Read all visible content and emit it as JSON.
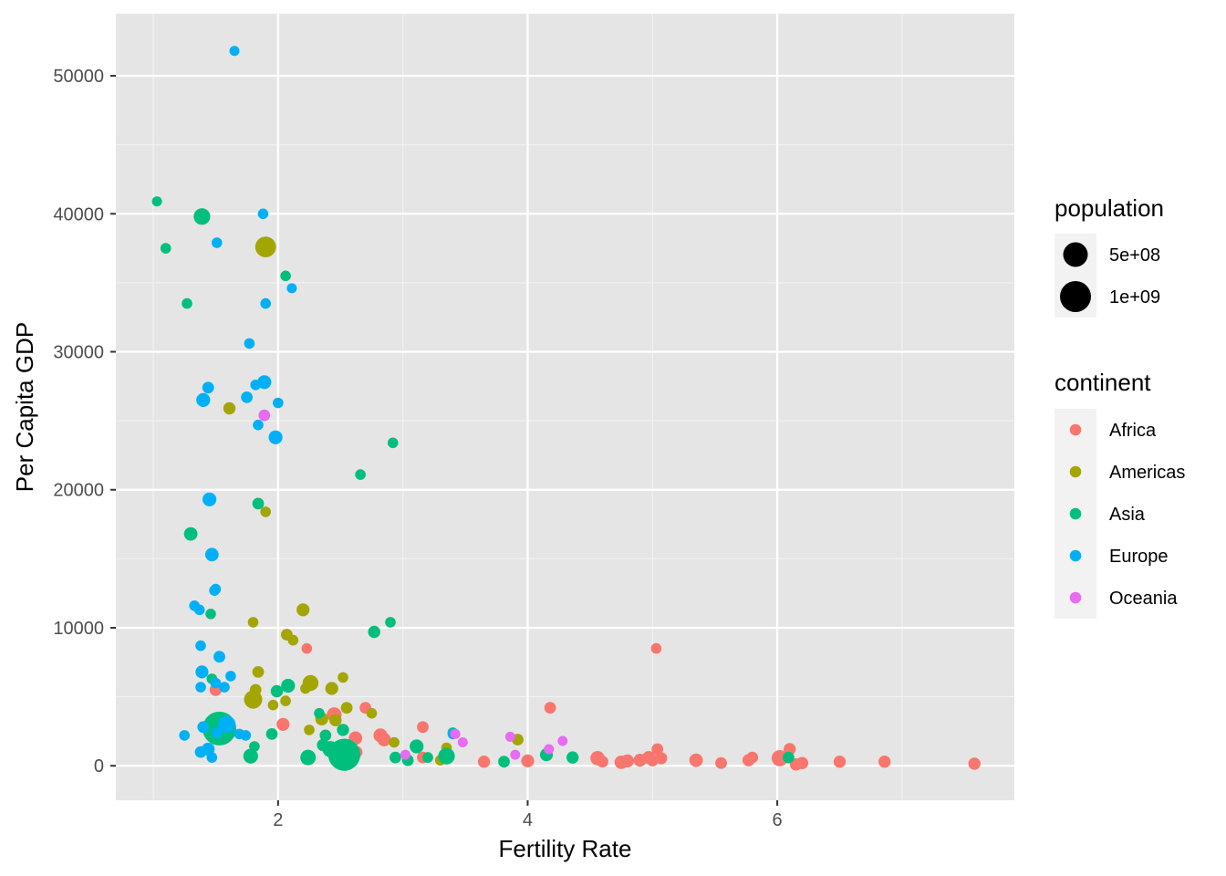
{
  "chart_data": {
    "type": "scatter",
    "xlabel": "Fertility Rate",
    "ylabel": "Per Capita GDP",
    "xlim": [
      0.7,
      7.9
    ],
    "ylim": [
      -2500,
      54500
    ],
    "x_ticks": [
      2,
      4,
      6
    ],
    "x_minor_ticks": [
      1,
      3,
      5,
      7
    ],
    "y_ticks": [
      0,
      10000,
      20000,
      30000,
      40000,
      50000
    ],
    "y_minor_ticks": [
      5000,
      15000,
      25000,
      35000,
      45000
    ],
    "x_tick_labels": [
      "2",
      "4",
      "6"
    ],
    "y_tick_labels": [
      "0",
      "10000",
      "20000",
      "30000",
      "40000",
      "50000"
    ],
    "grid": true,
    "legend_position": "right",
    "size_legend": {
      "title": "population",
      "entries": [
        {
          "label": "5e+08",
          "value": 500000000
        },
        {
          "label": "1e+09",
          "value": 1000000000
        }
      ]
    },
    "color_legend": {
      "title": "continent",
      "entries": [
        {
          "label": "Africa",
          "color": "#F8766D"
        },
        {
          "label": "Americas",
          "color": "#A3A500"
        },
        {
          "label": "Asia",
          "color": "#00BF7D"
        },
        {
          "label": "Europe",
          "color": "#00B0F6"
        },
        {
          "label": "Oceania",
          "color": "#E76BF3"
        }
      ]
    },
    "colors": {
      "panel_background": "#E5E5E5",
      "grid_major": "#FFFFFF",
      "grid_minor": "#F2F2F2",
      "legend_key_background": "#F2F2F2"
    },
    "series": [
      {
        "name": "Africa",
        "color": "#F8766D",
        "points": [
          [
            1.5,
            5500,
            30000000.0
          ],
          [
            2.23,
            8500,
            10000000.0
          ],
          [
            2.04,
            3000,
            40000000.0
          ],
          [
            2.45,
            3700,
            80000000.0
          ],
          [
            2.7,
            4200,
            20000000.0
          ],
          [
            2.62,
            2000,
            50000000.0
          ],
          [
            2.82,
            2200,
            60000000.0
          ],
          [
            2.85,
            1900,
            50000000.0
          ],
          [
            2.63,
            1000,
            20000000.0
          ],
          [
            3.16,
            2800,
            20000000.0
          ],
          [
            3.16,
            600,
            20000000.0
          ],
          [
            3.65,
            300,
            30000000.0
          ],
          [
            4.0,
            350,
            40000000.0
          ],
          [
            4.18,
            4200,
            20000000.0
          ],
          [
            4.56,
            550,
            70000000.0
          ],
          [
            4.6,
            300,
            20000000.0
          ],
          [
            4.75,
            250,
            50000000.0
          ],
          [
            4.8,
            350,
            40000000.0
          ],
          [
            4.9,
            400,
            40000000.0
          ],
          [
            4.97,
            600,
            40000000.0
          ],
          [
            5.0,
            400,
            30000000.0
          ],
          [
            5.03,
            8500,
            10000000.0
          ],
          [
            5.04,
            1200,
            20000000.0
          ],
          [
            5.07,
            550,
            30000000.0
          ],
          [
            5.35,
            400,
            50000000.0
          ],
          [
            5.55,
            200,
            20000000.0
          ],
          [
            5.77,
            400,
            30000000.0
          ],
          [
            5.8,
            600,
            20000000.0
          ],
          [
            6.02,
            550,
            120000000.0
          ],
          [
            6.1,
            1200,
            30000000.0
          ],
          [
            6.15,
            100,
            30000000.0
          ],
          [
            6.2,
            200,
            30000000.0
          ],
          [
            6.5,
            300,
            30000000.0
          ],
          [
            6.86,
            300,
            30000000.0
          ],
          [
            7.58,
            150,
            30000000.0
          ]
        ]
      },
      {
        "name": "Americas",
        "color": "#A3A500",
        "points": [
          [
            1.61,
            25900,
            30000000.0
          ],
          [
            1.9,
            37600,
            300000000.0
          ],
          [
            1.8,
            10400,
            10000000.0
          ],
          [
            1.82,
            5500,
            20000000.0
          ],
          [
            1.84,
            6800,
            20000000.0
          ],
          [
            1.8,
            4800,
            190000000.0
          ],
          [
            1.9,
            18400,
            10000000.0
          ],
          [
            1.96,
            4400,
            10000000.0
          ],
          [
            2.06,
            4700,
            10000000.0
          ],
          [
            2.07,
            9500,
            20000000.0
          ],
          [
            2.12,
            9100,
            10000000.0
          ],
          [
            2.2,
            11300,
            40000000.0
          ],
          [
            2.22,
            5600,
            10000000.0
          ],
          [
            2.26,
            6000,
            110000000.0
          ],
          [
            2.25,
            2600,
            10000000.0
          ],
          [
            2.35,
            3400,
            40000000.0
          ],
          [
            2.43,
            5600,
            40000000.0
          ],
          [
            2.46,
            3300,
            30000000.0
          ],
          [
            2.52,
            6400,
            10000000.0
          ],
          [
            2.55,
            4200,
            20000000.0
          ],
          [
            2.6,
            900,
            10000000.0
          ],
          [
            2.75,
            3800,
            10000000.0
          ],
          [
            2.93,
            1700,
            10000000.0
          ],
          [
            3.2,
            600,
            10000000.0
          ],
          [
            3.3,
            400,
            10000000.0
          ],
          [
            3.35,
            1300,
            10000000.0
          ],
          [
            3.92,
            1900,
            20000000.0
          ]
        ]
      },
      {
        "name": "Asia",
        "color": "#00BF7D",
        "points": [
          [
            1.03,
            40900,
            5000000.0
          ],
          [
            1.1,
            37500,
            10000000.0
          ],
          [
            1.27,
            33500,
            10000000.0
          ],
          [
            1.3,
            16800,
            50000000.0
          ],
          [
            1.39,
            39800,
            130000000.0
          ],
          [
            1.47,
            6300,
            10000000.0
          ],
          [
            1.46,
            11000,
            10000000.0
          ],
          [
            1.5,
            2400,
            10000000.0
          ],
          [
            1.53,
            2700,
            1250000000.0
          ],
          [
            1.78,
            700,
            80000000.0
          ],
          [
            1.81,
            1400,
            10000000.0
          ],
          [
            1.84,
            19000,
            20000000.0
          ],
          [
            1.95,
            2300,
            20000000.0
          ],
          [
            1.99,
            5400,
            30000000.0
          ],
          [
            2.06,
            35500,
            10000000.0
          ],
          [
            2.08,
            5800,
            60000000.0
          ],
          [
            2.24,
            600,
            100000000.0
          ],
          [
            2.33,
            3800,
            10000000.0
          ],
          [
            2.36,
            1500,
            30000000.0
          ],
          [
            2.38,
            2200,
            20000000.0
          ],
          [
            2.42,
            1200,
            120000000.0
          ],
          [
            2.53,
            800,
            1100000000.0
          ],
          [
            2.52,
            2600,
            30000000.0
          ],
          [
            2.66,
            21100,
            10000000.0
          ],
          [
            2.77,
            9700,
            30000000.0
          ],
          [
            2.9,
            10400,
            10000000.0
          ],
          [
            2.92,
            23400,
            10000000.0
          ],
          [
            2.94,
            600,
            20000000.0
          ],
          [
            3.04,
            400,
            20000000.0
          ],
          [
            3.11,
            1400,
            60000000.0
          ],
          [
            3.2,
            600,
            10000000.0
          ],
          [
            3.35,
            700,
            130000000.0
          ],
          [
            3.4,
            2400,
            10000000.0
          ],
          [
            3.81,
            300,
            20000000.0
          ],
          [
            4.15,
            800,
            40000000.0
          ],
          [
            4.36,
            600,
            30000000.0
          ],
          [
            6.09,
            600,
            20000000.0
          ]
        ]
      },
      {
        "name": "Europe",
        "color": "#00B0F6",
        "points": [
          [
            1.25,
            2200,
            10000000.0
          ],
          [
            1.33,
            11600,
            10000000.0
          ],
          [
            1.37,
            11300,
            10000000.0
          ],
          [
            1.38,
            8700,
            10000000.0
          ],
          [
            1.38,
            5700,
            10000000.0
          ],
          [
            1.39,
            6800,
            40000000.0
          ],
          [
            1.38,
            1000,
            20000000.0
          ],
          [
            1.4,
            26500,
            60000000.0
          ],
          [
            1.4,
            2800,
            20000000.0
          ],
          [
            1.44,
            27400,
            20000000.0
          ],
          [
            1.44,
            1200,
            40000000.0
          ],
          [
            1.45,
            19300,
            60000000.0
          ],
          [
            1.47,
            15300,
            50000000.0
          ],
          [
            1.47,
            600,
            10000000.0
          ],
          [
            1.49,
            12700,
            10000000.0
          ],
          [
            1.5,
            12800,
            10000000.0
          ],
          [
            1.5,
            6000,
            10000000.0
          ],
          [
            1.51,
            37900,
            10000000.0
          ],
          [
            1.51,
            2400,
            10000000.0
          ],
          [
            1.53,
            7900,
            20000000.0
          ],
          [
            1.57,
            5700,
            10000000.0
          ],
          [
            1.59,
            3000,
            150000000.0
          ],
          [
            1.62,
            6500,
            10000000.0
          ],
          [
            1.65,
            51800,
            5000000.0
          ],
          [
            1.69,
            2300,
            10000000.0
          ],
          [
            1.74,
            2200,
            10000000.0
          ],
          [
            1.75,
            26700,
            20000000.0
          ],
          [
            1.77,
            30600,
            10000000.0
          ],
          [
            1.82,
            27600,
            10000000.0
          ],
          [
            1.84,
            24700,
            10000000.0
          ],
          [
            1.88,
            40000,
            10000000.0
          ],
          [
            1.89,
            27800,
            60000000.0
          ],
          [
            1.9,
            33500,
            10000000.0
          ],
          [
            1.98,
            23800,
            60000000.0
          ],
          [
            2.0,
            26300,
            10000000.0
          ],
          [
            2.11,
            34600,
            5000000.0
          ],
          [
            3.4,
            2300,
            10000000.0
          ]
        ]
      },
      {
        "name": "Oceania",
        "color": "#E76BF3",
        "points": [
          [
            1.89,
            25400,
            20000000.0
          ],
          [
            3.02,
            800,
            5000000.0
          ],
          [
            3.42,
            2300,
            5000000.0
          ],
          [
            3.48,
            1700,
            5000000.0
          ],
          [
            3.86,
            2100,
            5000000.0
          ],
          [
            3.9,
            800,
            5000000.0
          ],
          [
            4.17,
            1200,
            5000000.0
          ],
          [
            4.28,
            1800,
            5000000.0
          ]
        ]
      }
    ]
  }
}
